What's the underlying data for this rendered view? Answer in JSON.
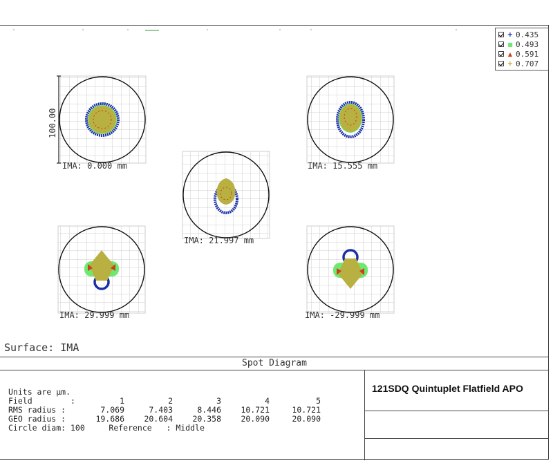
{
  "legend": [
    {
      "value": "0.435",
      "symbol": "+",
      "color": "#1a2ea8"
    },
    {
      "value": "0.493",
      "symbol": "■",
      "color": "#6ee86e"
    },
    {
      "value": "0.591",
      "symbol": "▲",
      "color": "#c84020"
    },
    {
      "value": "0.707",
      "symbol": "+",
      "color": "#b8b040"
    }
  ],
  "scale_bar_label": "100.00",
  "fields": [
    {
      "label": "IMA: 0.000 mm"
    },
    {
      "label": "IMA: 15.555 mm"
    },
    {
      "label": "IMA: 21.997 mm"
    },
    {
      "label": "IMA: 29.999 mm"
    },
    {
      "label": "IMA: -29.999 mm"
    }
  ],
  "surface": "Surface: IMA",
  "report": {
    "title": "Spot Diagram",
    "model": "121SDQ Quintuplet Flatfield APO",
    "units": "Units are µm.",
    "field_label": "Field        :",
    "field_numbers": [
      "1",
      "2",
      "3",
      "4",
      "5"
    ],
    "rms_label": "RMS radius :",
    "rms": [
      "7.069",
      "7.403",
      "8.446",
      "10.721",
      "10.721"
    ],
    "geo_label": "GEO radius :",
    "geo": [
      "19.686",
      "20.604",
      "20.358",
      "20.090",
      "20.090"
    ],
    "circle_line": "Circle diam: 100     Reference   : Middle"
  },
  "colors": {
    "ray1": "#1a2ea8",
    "ray2": "#6ee86e",
    "ray3": "#c84020",
    "ray4": "#b8b040",
    "grid": "#c8c8c8"
  }
}
